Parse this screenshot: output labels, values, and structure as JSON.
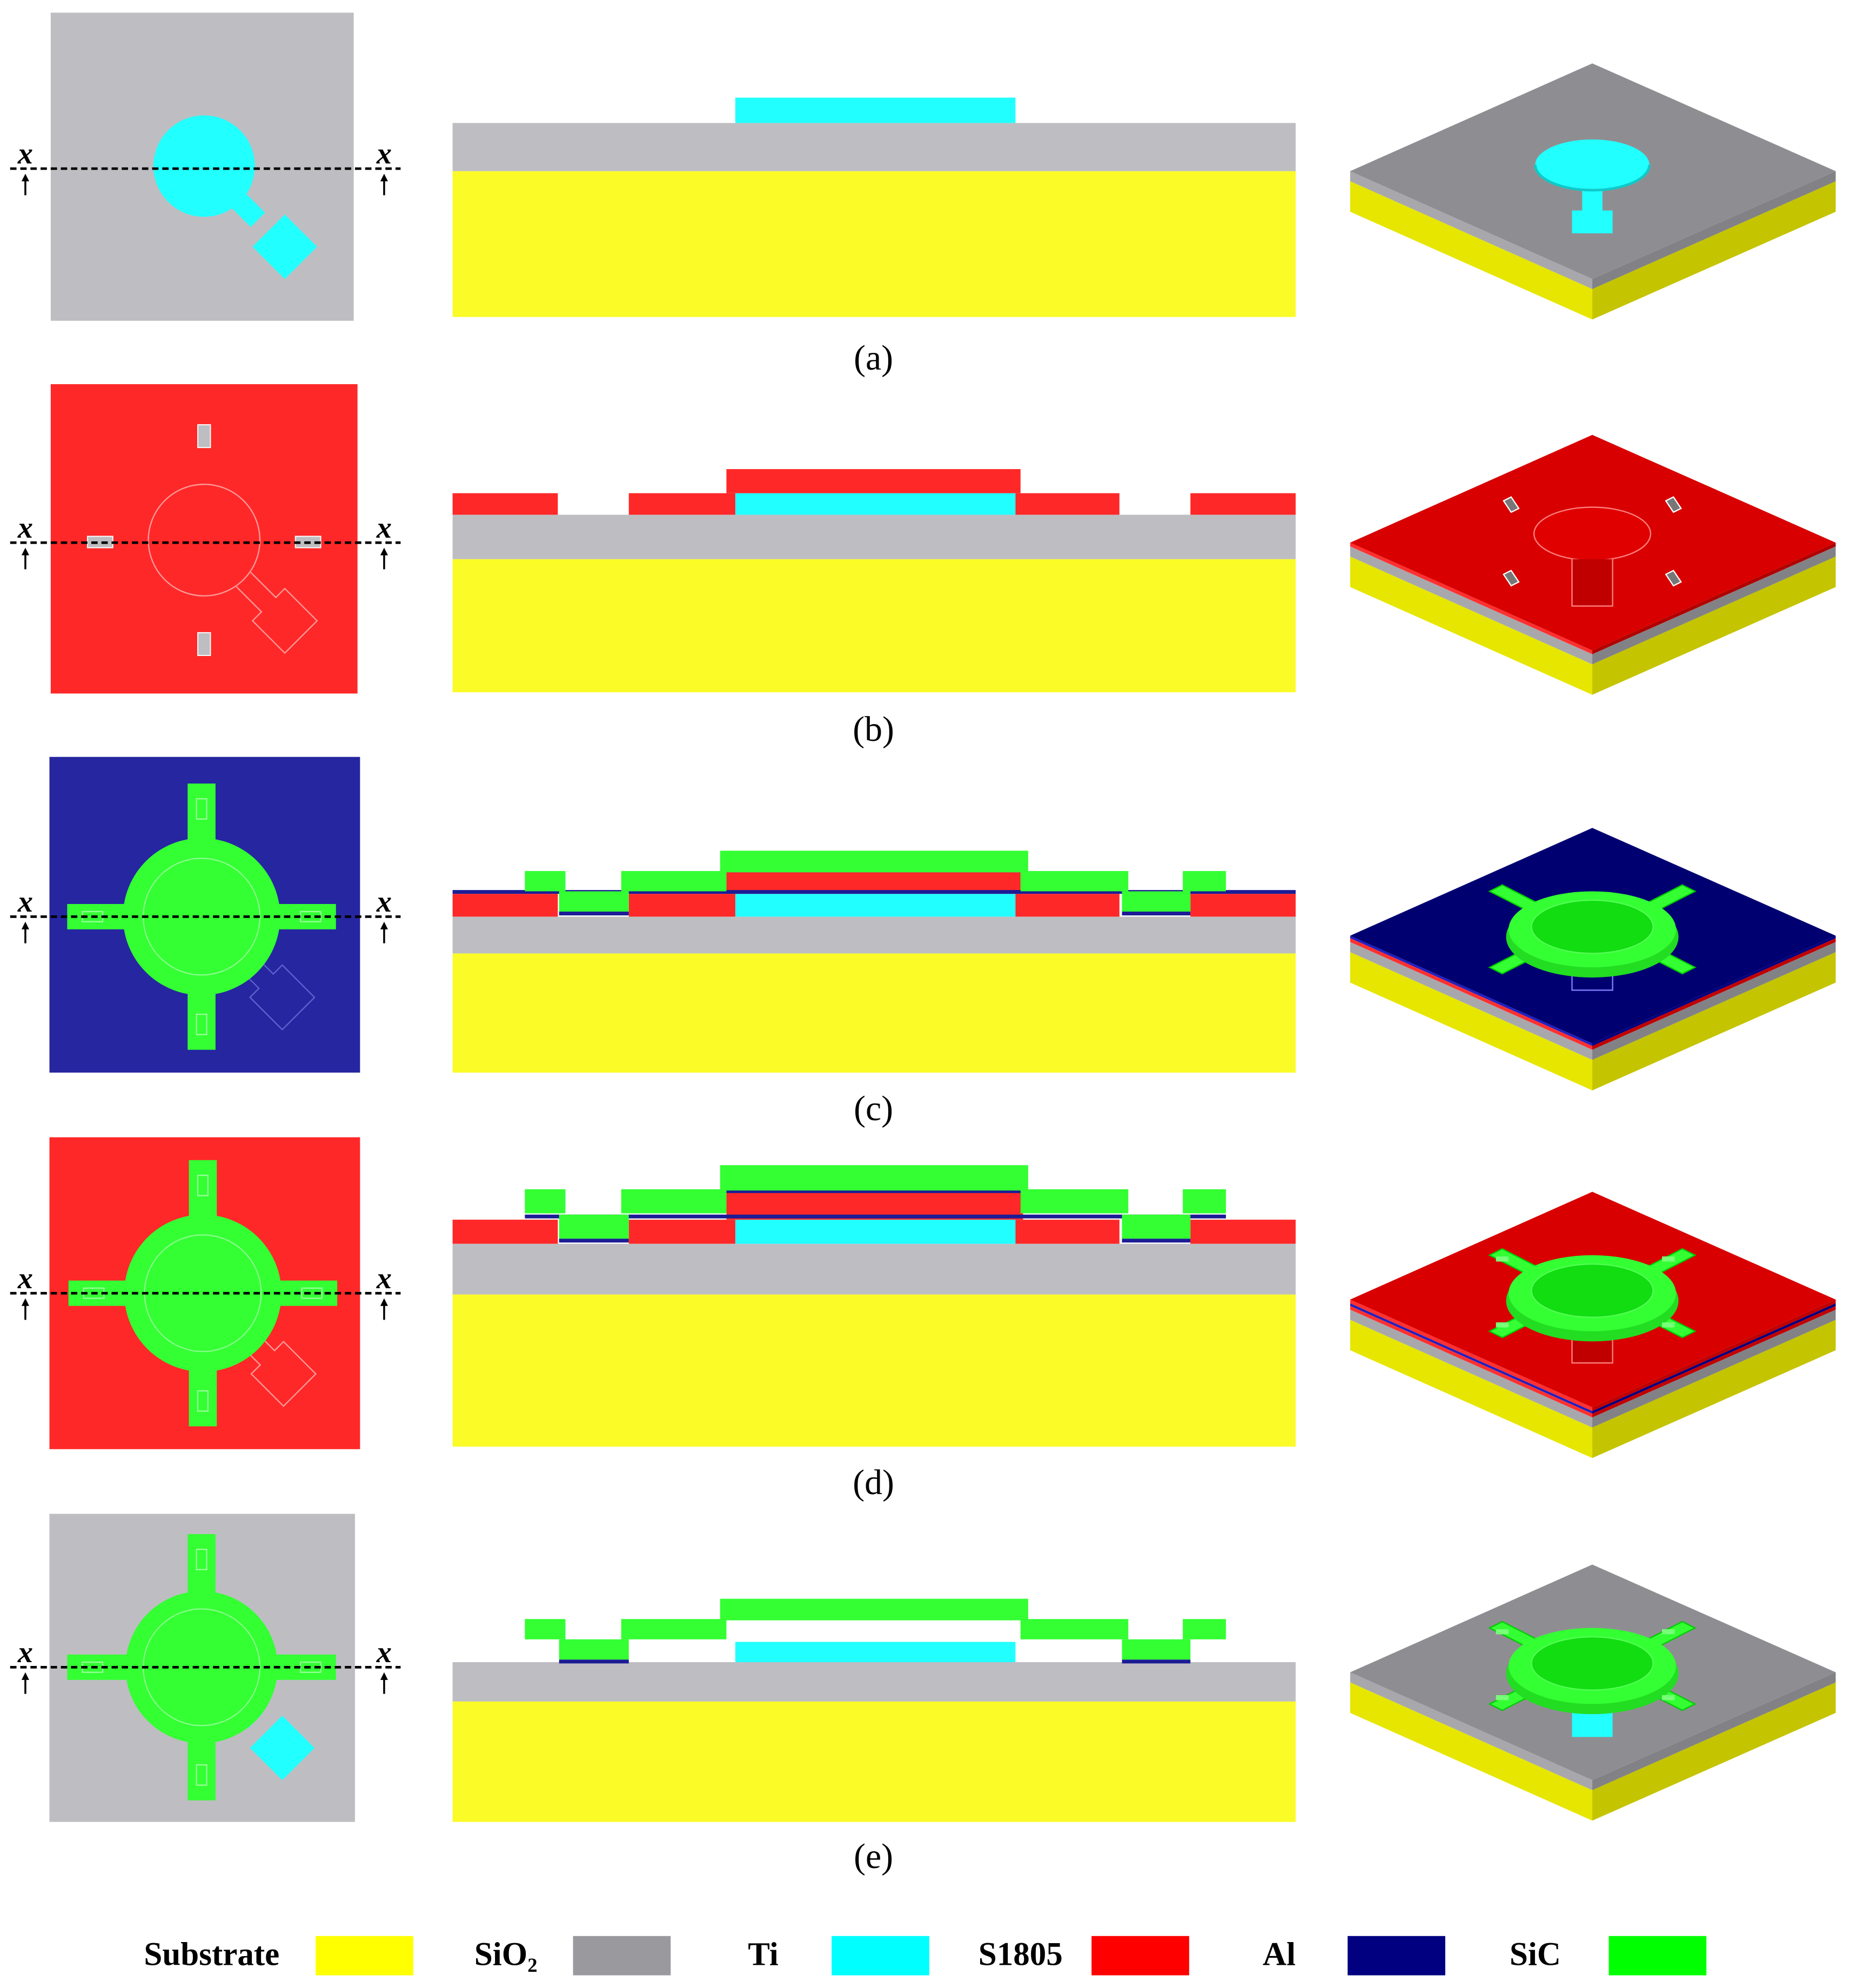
{
  "panels": [
    {
      "label": "(a)"
    },
    {
      "label": "(b)"
    },
    {
      "label": "(c)"
    },
    {
      "label": "(d)"
    },
    {
      "label": "(e)"
    }
  ],
  "section_marker": "x",
  "legend": [
    {
      "name": "Substrate",
      "color": "#ffff00"
    },
    {
      "name": "SiO₂",
      "color": "#9a9a9e"
    },
    {
      "name": "Ti",
      "color": "#00ffff"
    },
    {
      "name": "S1805",
      "color": "#ff0000"
    },
    {
      "name": "Al",
      "color": "#000080"
    },
    {
      "name": "SiC",
      "color": "#00ff00"
    }
  ]
}
